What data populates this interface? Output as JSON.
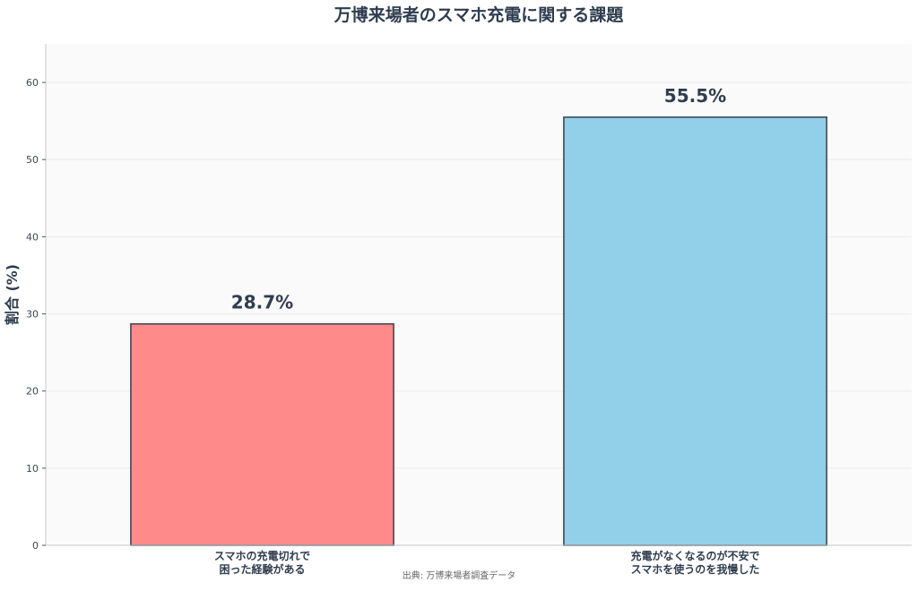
{
  "chart_data": {
    "type": "bar",
    "title": "万博来場者のスマホ充電に関する課題",
    "ylabel": "割合 (%)",
    "xlabel": "",
    "categories": [
      [
        "スマホの充電切れで",
        "困った経験がある"
      ],
      [
        "充電がなくなるのが不安で",
        "スマホを使うのを我慢した"
      ]
    ],
    "values": [
      28.7,
      55.5
    ],
    "data_labels": [
      "28.7%",
      "55.5%"
    ],
    "colors": [
      "#ff8a8a",
      "#92cfe9"
    ],
    "ylim": [
      0,
      65
    ],
    "yticks": [
      0,
      10,
      20,
      30,
      40,
      50,
      60
    ],
    "grid": true,
    "source": "出典: 万博来場者調査データ"
  }
}
